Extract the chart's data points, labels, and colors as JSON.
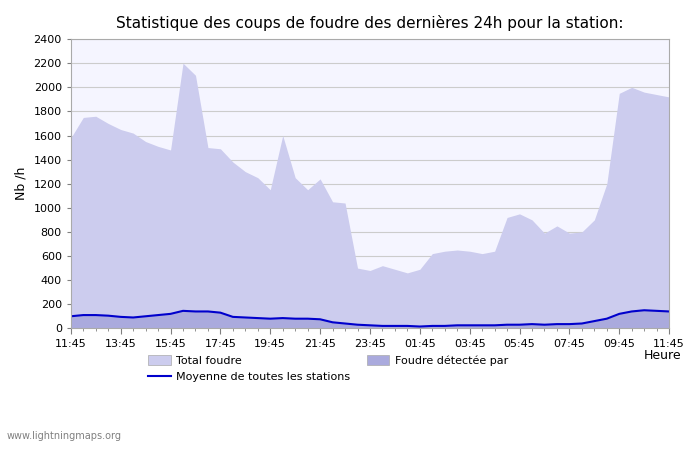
{
  "title": "Statistique des coups de foudre des dernières 24h pour la station:",
  "xlabel": "Heure",
  "ylabel": "Nb /h",
  "ylim": [
    0,
    2400
  ],
  "yticks": [
    0,
    200,
    400,
    600,
    800,
    1000,
    1200,
    1400,
    1600,
    1800,
    2000,
    2200,
    2400
  ],
  "xtick_labels": [
    "11:45",
    "13:45",
    "15:45",
    "17:45",
    "19:45",
    "21:45",
    "23:45",
    "01:45",
    "03:45",
    "05:45",
    "07:45",
    "09:45",
    "11:45"
  ],
  "bg_color": "#ffffff",
  "plot_bg_color": "#f5f5ff",
  "grid_color": "#cccccc",
  "fill_total_color": "#ccccee",
  "fill_detected_color": "#aaaadd",
  "line_color": "#0000cc",
  "watermark": "www.lightningmaps.org",
  "legend": [
    {
      "label": "Total foudre",
      "color": "#ccccee"
    },
    {
      "label": "Foudre détectée par",
      "color": "#aaaadd"
    },
    {
      "label": "Moyenne de toutes les stations",
      "color": "#0000cc"
    }
  ],
  "x_total": [
    0,
    1,
    2,
    3,
    4,
    5,
    6,
    7,
    8,
    9,
    10,
    11,
    12,
    13,
    14,
    15,
    16,
    17,
    18,
    19,
    20,
    21,
    22,
    23,
    24,
    25,
    26,
    27,
    28,
    29,
    30,
    31,
    32,
    33,
    34,
    35,
    36,
    37,
    38,
    39,
    40,
    41,
    42,
    43,
    44,
    45,
    46,
    47,
    48
  ],
  "y_total": [
    1580,
    1750,
    1760,
    1700,
    1650,
    1620,
    1550,
    1510,
    1480,
    2200,
    2100,
    1500,
    1490,
    1380,
    1300,
    1250,
    1150,
    1600,
    1250,
    1150,
    1240,
    1050,
    1040,
    500,
    480,
    520,
    490,
    460,
    490,
    620,
    640,
    650,
    640,
    620,
    640,
    920,
    950,
    900,
    790,
    850,
    790,
    800,
    900,
    1200,
    1950,
    2000,
    1960,
    1940,
    1920
  ],
  "y_detected": [
    100,
    110,
    110,
    105,
    95,
    90,
    100,
    110,
    120,
    145,
    140,
    140,
    130,
    95,
    90,
    85,
    80,
    85,
    80,
    80,
    75,
    50,
    40,
    30,
    25,
    20,
    20,
    20,
    15,
    20,
    20,
    25,
    25,
    25,
    25,
    30,
    30,
    35,
    30,
    35,
    35,
    40,
    60,
    80,
    120,
    140,
    150,
    145,
    140
  ],
  "y_mean": [
    100,
    110,
    110,
    105,
    95,
    90,
    100,
    110,
    120,
    145,
    140,
    140,
    130,
    95,
    90,
    85,
    80,
    85,
    80,
    80,
    75,
    50,
    40,
    30,
    25,
    20,
    20,
    20,
    15,
    20,
    20,
    25,
    25,
    25,
    25,
    30,
    30,
    35,
    30,
    35,
    35,
    40,
    60,
    80,
    120,
    140,
    150,
    145,
    140
  ]
}
